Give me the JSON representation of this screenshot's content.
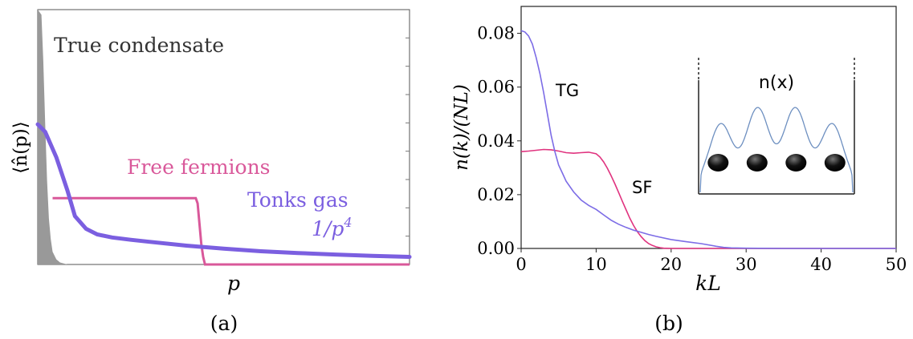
{
  "chart_data": [
    {
      "type": "line",
      "panel_label": "(a)",
      "xlabel": "p",
      "ylabel": "⟨n̂(p)⟩",
      "ticks_labeled": false,
      "annotations": {
        "condensate": "True condensate",
        "fermions": "Free fermions",
        "tonks": "Tonks gas",
        "power_law_base": "1/p",
        "power_law_exp": "4"
      },
      "colors": {
        "condensate": "#999999",
        "fermions": "#d9589a",
        "tonks": "#7b5fe0",
        "text": "#333333"
      },
      "series": [
        {
          "key": "condensate",
          "style": "filled",
          "x": [
            0,
            0.01,
            0.015,
            0.02,
            0.025,
            0.03,
            0.035,
            0.04,
            0.05,
            0.06,
            0.08
          ],
          "y": [
            1.0,
            0.98,
            0.8,
            0.55,
            0.33,
            0.18,
            0.1,
            0.05,
            0.02,
            0.008,
            0.0
          ]
        },
        {
          "key": "fermions",
          "style": "line",
          "x": [
            0.04,
            0.425,
            0.43,
            0.435,
            0.44,
            0.445,
            0.45,
            1.0
          ],
          "y": [
            0.26,
            0.26,
            0.24,
            0.16,
            0.08,
            0.03,
            0.0,
            0.0
          ]
        },
        {
          "key": "tonks",
          "style": "line",
          "x": [
            0,
            0.02,
            0.05,
            0.08,
            0.1,
            0.13,
            0.16,
            0.2,
            0.25,
            0.3,
            0.4,
            0.5,
            0.6,
            0.7,
            0.8,
            0.9,
            1.0
          ],
          "y": [
            0.55,
            0.52,
            0.42,
            0.29,
            0.19,
            0.14,
            0.118,
            0.106,
            0.097,
            0.089,
            0.074,
            0.062,
            0.052,
            0.045,
            0.039,
            0.034,
            0.03
          ]
        }
      ]
    },
    {
      "type": "line",
      "panel_label": "(b)",
      "xlabel": "kL",
      "ylabel": "n(k)/(NL)",
      "xlim": [
        0,
        50
      ],
      "ylim": [
        0,
        0.09
      ],
      "xticks": [
        "0",
        "10",
        "20",
        "30",
        "40",
        "50"
      ],
      "yticks": [
        "0.00",
        "0.02",
        "0.04",
        "0.06",
        "0.08"
      ],
      "xtick_values": [
        0,
        10,
        20,
        30,
        40,
        50
      ],
      "ytick_values": [
        0,
        0.02,
        0.04,
        0.06,
        0.08
      ],
      "annotations": {
        "tg": "TG",
        "sf": "SF"
      },
      "colors": {
        "TG": "#7c6ce6",
        "SF": "#e0337f",
        "inset_curve": "#6d8fc0",
        "atom": "#111111"
      },
      "series": [
        {
          "name": "TG",
          "x": [
            0,
            0.5,
            1,
            1.5,
            2,
            2.5,
            3,
            3.5,
            4,
            4.5,
            5,
            5.5,
            6,
            7,
            8,
            9,
            10,
            11,
            12,
            13,
            14,
            15,
            16,
            17,
            18,
            20,
            22,
            24,
            26,
            27,
            28,
            30,
            35,
            40,
            45,
            50
          ],
          "y": [
            0.081,
            0.0805,
            0.079,
            0.076,
            0.071,
            0.065,
            0.058,
            0.05,
            0.042,
            0.036,
            0.031,
            0.028,
            0.025,
            0.021,
            0.018,
            0.016,
            0.0145,
            0.0125,
            0.0105,
            0.009,
            0.0078,
            0.0068,
            0.006,
            0.0052,
            0.0045,
            0.0033,
            0.0025,
            0.0018,
            0.0008,
            0.0004,
            0.0002,
            0.0001,
            0.0,
            0.0,
            0.0,
            0.0
          ]
        },
        {
          "name": "SF",
          "x": [
            0,
            1,
            2,
            3,
            4,
            5,
            6,
            7,
            8,
            9,
            10,
            10.5,
            11,
            11.5,
            12,
            12.5,
            13,
            13.5,
            14,
            14.5,
            15,
            15.5,
            16,
            16.5,
            17,
            17.5,
            18,
            18.5,
            19,
            20,
            22,
            25,
            30,
            50
          ],
          "y": [
            0.036,
            0.0362,
            0.0365,
            0.0368,
            0.0367,
            0.0362,
            0.0356,
            0.0354,
            0.0356,
            0.0358,
            0.0352,
            0.034,
            0.0322,
            0.0298,
            0.027,
            0.024,
            0.0208,
            0.0175,
            0.0143,
            0.0112,
            0.0085,
            0.0062,
            0.0044,
            0.0029,
            0.0018,
            0.0011,
            0.0006,
            0.0003,
            0.0001,
            0.0,
            0.0,
            0.0,
            0.0,
            0.0
          ]
        }
      ],
      "inset": {
        "label": "n(x)",
        "atom_count": 4
      }
    }
  ]
}
